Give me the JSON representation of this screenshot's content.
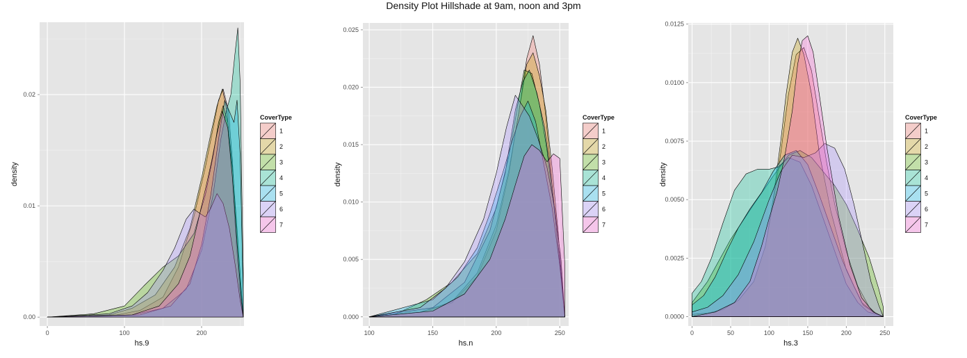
{
  "title": "Density Plot Hillshade at 9am, noon and 3pm",
  "colors": [
    "#F8766D",
    "#C49A00",
    "#53B400",
    "#00C094",
    "#00B6EB",
    "#A58AFF",
    "#FB61D7"
  ],
  "chart_data": [
    {
      "type": "area",
      "xlabel": "hs.9",
      "ylabel": "density",
      "xlim": [
        -10,
        255
      ],
      "ylim": [
        -0.0008,
        0.0265
      ],
      "xticks": [
        0,
        100,
        200
      ],
      "xtick_labels": [
        "0",
        "100",
        "200"
      ],
      "yticks": [
        0,
        0.01,
        0.02
      ],
      "ytick_labels": [
        "0.00",
        "0.01",
        "0.02"
      ],
      "grid": true,
      "legend": {
        "title": "CoverType",
        "position": "right",
        "entries": [
          "1",
          "2",
          "3",
          "4",
          "5",
          "6",
          "7"
        ]
      },
      "series": [
        {
          "name": "1",
          "x": [
            0,
            90,
            120,
            150,
            170,
            190,
            205,
            215,
            222,
            228,
            235,
            240,
            245,
            249,
            252,
            254
          ],
          "y": [
            0,
            0.0002,
            0.0006,
            0.0018,
            0.0045,
            0.009,
            0.0135,
            0.017,
            0.0195,
            0.0205,
            0.0185,
            0.014,
            0.008,
            0.004,
            0.0015,
            0
          ]
        },
        {
          "name": "2",
          "x": [
            0,
            80,
            110,
            140,
            165,
            185,
            200,
            212,
            220,
            227,
            233,
            239,
            245,
            250,
            254
          ],
          "y": [
            0,
            0.0002,
            0.0008,
            0.002,
            0.0045,
            0.008,
            0.0125,
            0.0165,
            0.019,
            0.0205,
            0.0185,
            0.0135,
            0.0065,
            0.002,
            0
          ]
        },
        {
          "name": "3",
          "x": [
            0,
            60,
            100,
            125,
            150,
            170,
            190,
            205,
            215,
            222,
            228,
            234,
            240,
            246,
            251,
            254
          ],
          "y": [
            0,
            0.0003,
            0.001,
            0.0028,
            0.0045,
            0.0055,
            0.0075,
            0.011,
            0.0145,
            0.0175,
            0.019,
            0.0175,
            0.0135,
            0.008,
            0.003,
            0
          ]
        },
        {
          "name": "4",
          "x": [
            0,
            110,
            150,
            180,
            200,
            215,
            225,
            232,
            238,
            243,
            247,
            250,
            252,
            254
          ],
          "y": [
            0,
            0.0002,
            0.0008,
            0.0025,
            0.006,
            0.011,
            0.016,
            0.0185,
            0.02,
            0.0235,
            0.026,
            0.021,
            0.012,
            0.004
          ]
        },
        {
          "name": "5",
          "x": [
            0,
            120,
            160,
            185,
            200,
            212,
            222,
            230,
            236,
            242,
            246,
            250,
            254
          ],
          "y": [
            0,
            0.0002,
            0.001,
            0.003,
            0.0065,
            0.011,
            0.016,
            0.0195,
            0.0185,
            0.0175,
            0.0195,
            0.0145,
            0.002
          ]
        },
        {
          "name": "6",
          "x": [
            0,
            80,
            110,
            130,
            150,
            165,
            180,
            190,
            198,
            205,
            212,
            220,
            228,
            236,
            244,
            250,
            254
          ],
          "y": [
            0,
            0.0003,
            0.001,
            0.0022,
            0.0042,
            0.0062,
            0.0088,
            0.0097,
            0.0093,
            0.009,
            0.0098,
            0.0111,
            0.0102,
            0.008,
            0.0045,
            0.0015,
            0
          ]
        },
        {
          "name": "7",
          "x": [
            0,
            110,
            145,
            170,
            185,
            195,
            205,
            213,
            220,
            227,
            234,
            240,
            246,
            251,
            254
          ],
          "y": [
            0,
            0.0002,
            0.001,
            0.003,
            0.0055,
            0.0085,
            0.0115,
            0.014,
            0.0165,
            0.0185,
            0.017,
            0.0125,
            0.0065,
            0.002,
            0
          ]
        }
      ]
    },
    {
      "type": "area",
      "xlabel": "hs.n",
      "ylabel": "density",
      "xlim": [
        95,
        257
      ],
      "ylim": [
        -0.0008,
        0.0256
      ],
      "xticks": [
        100,
        150,
        200,
        250
      ],
      "xtick_labels": [
        "100",
        "150",
        "200",
        "250"
      ],
      "yticks": [
        0,
        0.005,
        0.01,
        0.015,
        0.02,
        0.025
      ],
      "ytick_labels": [
        "0.000",
        "0.005",
        "0.010",
        "0.015",
        "0.020",
        "0.025"
      ],
      "grid": true,
      "legend": {
        "title": "CoverType",
        "position": "right",
        "entries": [
          "1",
          "2",
          "3",
          "4",
          "5",
          "6",
          "7"
        ]
      },
      "series": [
        {
          "name": "1",
          "x": [
            100,
            140,
            165,
            185,
            200,
            210,
            218,
            224,
            229,
            234,
            239,
            244,
            249,
            254
          ],
          "y": [
            0,
            0.0004,
            0.0012,
            0.0035,
            0.0075,
            0.0125,
            0.018,
            0.0225,
            0.0245,
            0.022,
            0.0175,
            0.0115,
            0.0055,
            0
          ]
        },
        {
          "name": "2",
          "x": [
            100,
            140,
            165,
            185,
            200,
            210,
            218,
            224,
            229,
            234,
            239,
            244,
            249,
            254
          ],
          "y": [
            0,
            0.0004,
            0.0013,
            0.0038,
            0.008,
            0.0128,
            0.018,
            0.022,
            0.023,
            0.021,
            0.018,
            0.013,
            0.007,
            0
          ]
        },
        {
          "name": "3",
          "x": [
            100,
            120,
            145,
            165,
            185,
            200,
            210,
            217,
            222,
            228,
            234,
            240,
            246,
            251,
            254
          ],
          "y": [
            0,
            0.0002,
            0.0015,
            0.003,
            0.0055,
            0.0095,
            0.014,
            0.0185,
            0.0215,
            0.0212,
            0.0185,
            0.0145,
            0.009,
            0.004,
            0
          ]
        },
        {
          "name": "4",
          "x": [
            100,
            150,
            175,
            195,
            207,
            215,
            221,
            226,
            232,
            238,
            244,
            249,
            254
          ],
          "y": [
            0,
            0.0008,
            0.003,
            0.0075,
            0.0125,
            0.018,
            0.0205,
            0.0215,
            0.0195,
            0.0165,
            0.0115,
            0.006,
            0
          ]
        },
        {
          "name": "5",
          "x": [
            100,
            150,
            170,
            185,
            195,
            205,
            213,
            219,
            225,
            231,
            237,
            244,
            250,
            254
          ],
          "y": [
            0,
            0.0015,
            0.0035,
            0.006,
            0.009,
            0.0125,
            0.0155,
            0.0175,
            0.0188,
            0.017,
            0.0135,
            0.0095,
            0.0045,
            0
          ]
        },
        {
          "name": "6",
          "x": [
            100,
            140,
            160,
            175,
            190,
            200,
            208,
            215,
            220,
            226,
            233,
            240,
            246,
            251,
            254
          ],
          "y": [
            0,
            0.0008,
            0.0025,
            0.0048,
            0.0085,
            0.0125,
            0.0165,
            0.0193,
            0.0185,
            0.0175,
            0.0155,
            0.013,
            0.0095,
            0.005,
            0
          ]
        },
        {
          "name": "7",
          "x": [
            100,
            150,
            175,
            195,
            207,
            215,
            222,
            228,
            234,
            240,
            245,
            250,
            254
          ],
          "y": [
            0,
            0.0005,
            0.002,
            0.005,
            0.0085,
            0.0115,
            0.014,
            0.015,
            0.0145,
            0.0135,
            0.0142,
            0.0138,
            0.0045
          ]
        }
      ]
    },
    {
      "type": "area",
      "xlabel": "hs.3",
      "ylabel": "density",
      "xlim": [
        -5,
        261
      ],
      "ylim": [
        -0.0004,
        0.01255
      ],
      "xticks": [
        0,
        50,
        100,
        150,
        200,
        250
      ],
      "xtick_labels": [
        "0",
        "50",
        "100",
        "150",
        "200",
        "250"
      ],
      "yticks": [
        0,
        0.0025,
        0.005,
        0.0075,
        0.01,
        0.0125
      ],
      "ytick_labels": [
        "0.0000",
        "0.0025",
        "0.0050",
        "0.0075",
        "0.0100",
        "0.0125"
      ],
      "grid": true,
      "legend": {
        "title": "CoverType",
        "position": "right",
        "entries": [
          "1",
          "2",
          "3",
          "4",
          "5",
          "6",
          "7"
        ]
      },
      "series": [
        {
          "name": "1",
          "x": [
            0,
            20,
            40,
            60,
            80,
            95,
            105,
            115,
            125,
            135,
            145,
            155,
            165,
            175,
            185,
            200,
            215,
            230,
            240,
            248
          ],
          "y": [
            0.0001,
            0.00015,
            0.0003,
            0.0007,
            0.0015,
            0.003,
            0.0048,
            0.007,
            0.0095,
            0.0112,
            0.0115,
            0.0105,
            0.0085,
            0.0065,
            0.0048,
            0.0028,
            0.0013,
            0.0004,
            0.0001,
            0
          ]
        },
        {
          "name": "2",
          "x": [
            0,
            20,
            40,
            60,
            80,
            95,
            105,
            115,
            122,
            130,
            137,
            145,
            155,
            165,
            180,
            200,
            220,
            240,
            248
          ],
          "y": [
            0.0001,
            0.00015,
            0.0003,
            0.0007,
            0.0015,
            0.003,
            0.005,
            0.0075,
            0.0095,
            0.0113,
            0.0119,
            0.0112,
            0.0095,
            0.007,
            0.0045,
            0.002,
            0.0006,
            0.0001,
            0
          ]
        },
        {
          "name": "3",
          "x": [
            0,
            20,
            50,
            80,
            105,
            125,
            140,
            155,
            170,
            185,
            200,
            215,
            230,
            242,
            248
          ],
          "y": [
            0.0006,
            0.0015,
            0.0033,
            0.0048,
            0.006,
            0.0069,
            0.0071,
            0.0068,
            0.0062,
            0.0056,
            0.0048,
            0.0037,
            0.0025,
            0.0012,
            0.0004
          ]
        },
        {
          "name": "4",
          "x": [
            0,
            12,
            25,
            40,
            55,
            70,
            85,
            100,
            112,
            125,
            140,
            155,
            170,
            185,
            200,
            215,
            228,
            240,
            248
          ],
          "y": [
            0.001,
            0.0015,
            0.0025,
            0.004,
            0.0054,
            0.0061,
            0.0063,
            0.0063,
            0.0064,
            0.0068,
            0.0066,
            0.0056,
            0.0042,
            0.0028,
            0.0014,
            0.0006,
            0.0002,
            0.0001,
            0
          ]
        },
        {
          "name": "5",
          "x": [
            0,
            15,
            30,
            45,
            60,
            75,
            90,
            105,
            120,
            135,
            150,
            165,
            180,
            195,
            210,
            222,
            235,
            248
          ],
          "y": [
            0.0005,
            0.0009,
            0.0017,
            0.0028,
            0.0038,
            0.0046,
            0.0053,
            0.0062,
            0.0069,
            0.0071,
            0.0065,
            0.0052,
            0.0038,
            0.0024,
            0.0013,
            0.0005,
            0.0002,
            0
          ]
        },
        {
          "name": "6",
          "x": [
            0,
            20,
            40,
            60,
            80,
            100,
            115,
            130,
            145,
            160,
            172,
            185,
            198,
            210,
            222,
            232,
            242,
            248
          ],
          "y": [
            0.0002,
            0.0004,
            0.0009,
            0.0018,
            0.0032,
            0.005,
            0.0062,
            0.0069,
            0.0068,
            0.007,
            0.0074,
            0.0072,
            0.0063,
            0.0048,
            0.003,
            0.0015,
            0.0005,
            0
          ]
        },
        {
          "name": "7",
          "x": [
            0,
            30,
            55,
            75,
            90,
            100,
            110,
            120,
            130,
            137,
            143,
            150,
            157,
            165,
            175,
            190,
            205,
            220,
            235,
            248
          ],
          "y": [
            0,
            0.0002,
            0.0006,
            0.0015,
            0.003,
            0.0042,
            0.0053,
            0.0068,
            0.0088,
            0.0108,
            0.0118,
            0.012,
            0.0113,
            0.0095,
            0.0072,
            0.0043,
            0.0022,
            0.0008,
            0.0002,
            0
          ]
        }
      ]
    }
  ]
}
